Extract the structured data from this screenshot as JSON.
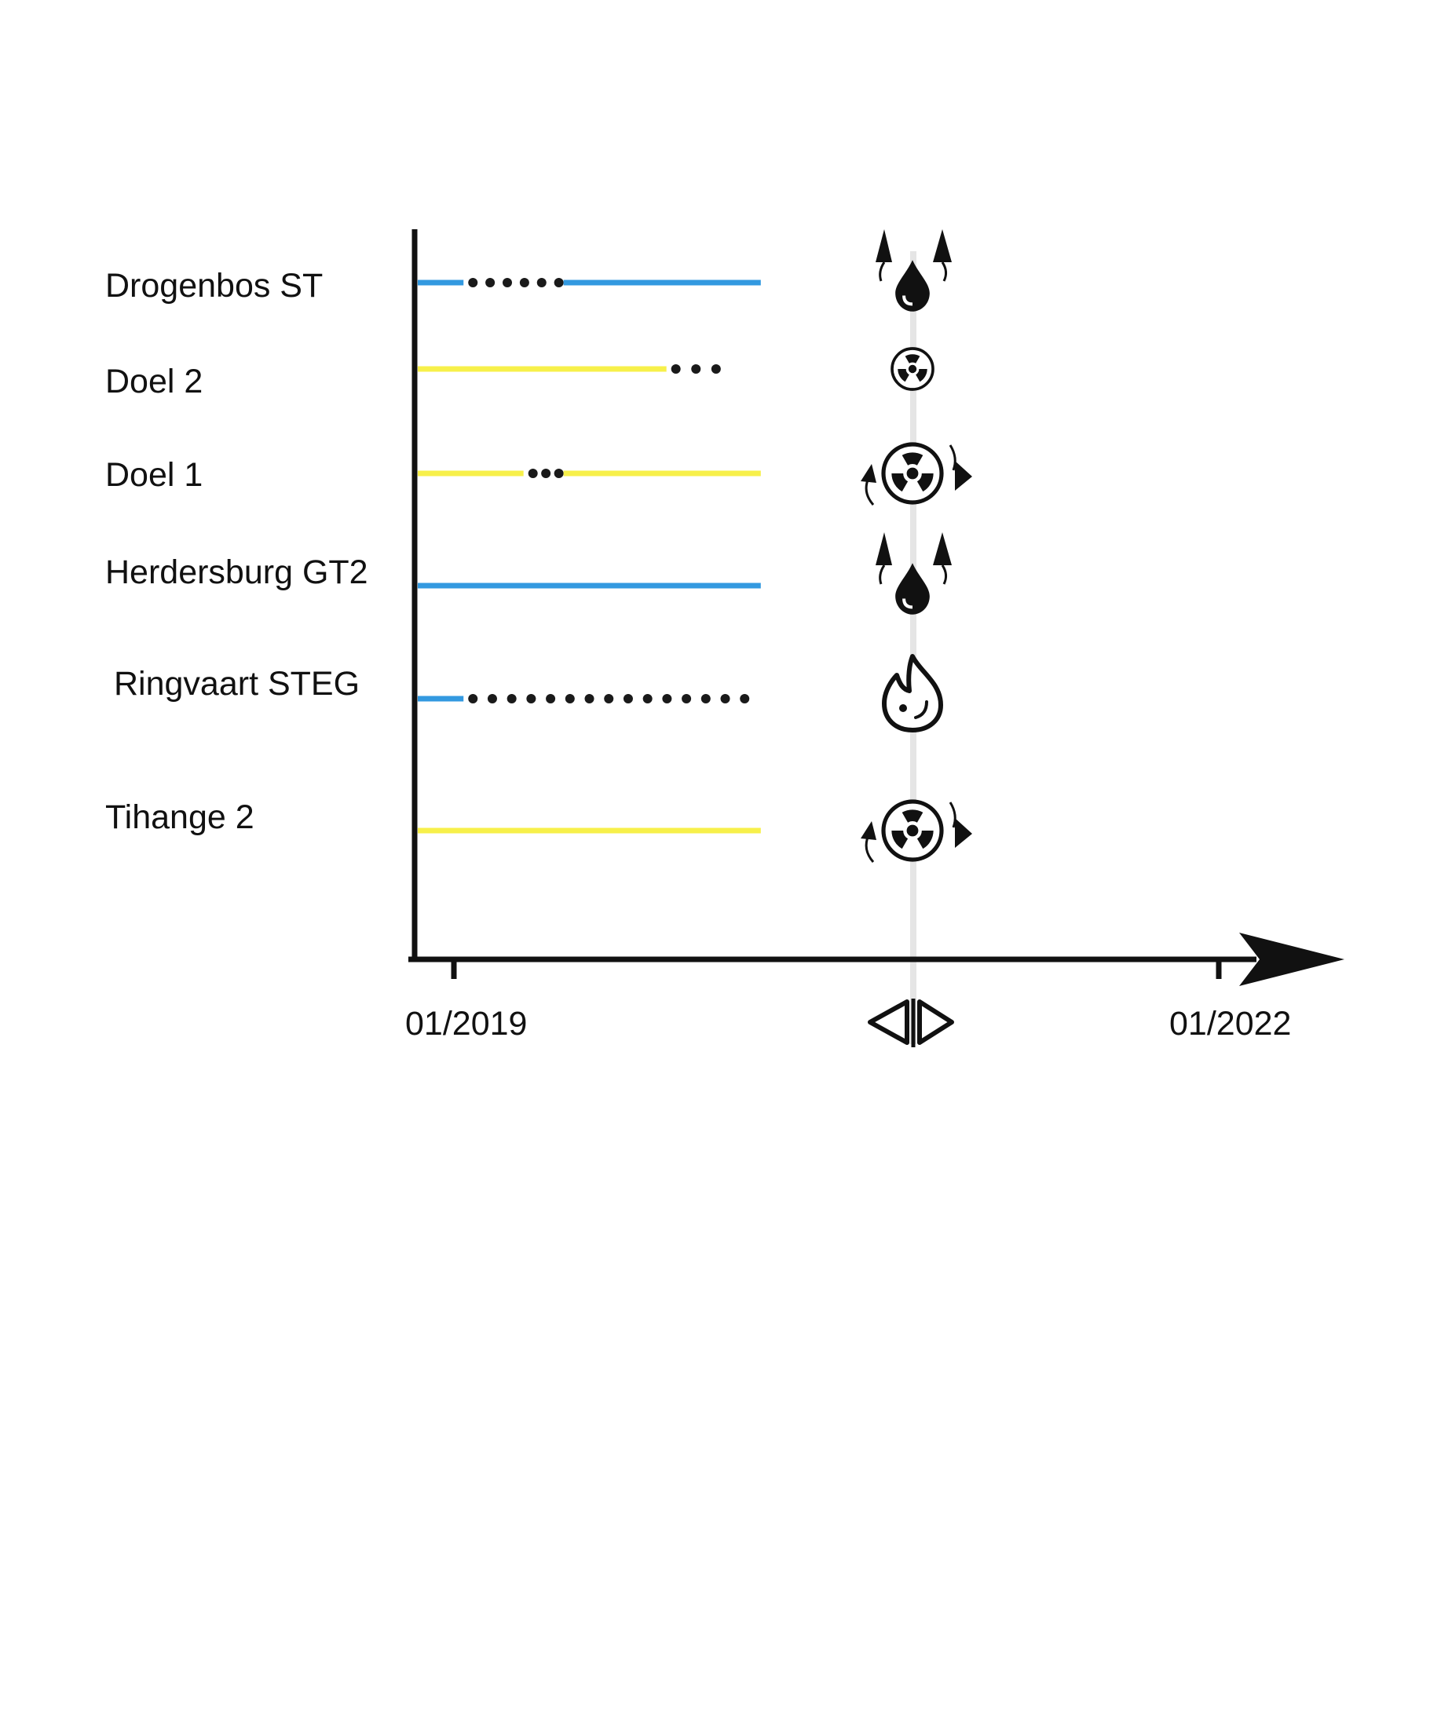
{
  "colors": {
    "electric": "#3399e0",
    "nuclear": "#f7f04a",
    "dots": "#1a1a1a",
    "axis": "#111111",
    "now_line": "#e5e5e5"
  },
  "chart_data": {
    "type": "timeline",
    "title": "",
    "xaxis": {
      "start_label": "01/2019",
      "end_label": "01/2022",
      "marker_label": "◁▷"
    },
    "rows": [
      {
        "label": "Drogenbos ST",
        "fuel": "gas",
        "color": "electric",
        "segments": [
          {
            "kind": "solid",
            "from": 0.0,
            "to": 0.08
          },
          {
            "kind": "dotted",
            "from": 0.08,
            "to": 0.255,
            "dots": 6
          },
          {
            "kind": "solid",
            "from": 0.255,
            "to": 0.6
          }
        ],
        "end_icon": "oil-drop-up-arrows-icon"
      },
      {
        "label": "Doel 2",
        "fuel": "nuclear",
        "color": "nuclear",
        "segments": [
          {
            "kind": "solid",
            "from": 0.0,
            "to": 0.435
          },
          {
            "kind": "dotted",
            "from": 0.435,
            "to": 0.53,
            "dots": 3
          }
        ],
        "end_icon": "radiation-icon"
      },
      {
        "label": "Doel 1",
        "fuel": "nuclear",
        "color": "nuclear",
        "segments": [
          {
            "kind": "solid",
            "from": 0.0,
            "to": 0.185
          },
          {
            "kind": "dotted",
            "from": 0.185,
            "to": 0.255,
            "dots": 3
          },
          {
            "kind": "solid",
            "from": 0.255,
            "to": 0.6
          }
        ],
        "end_icon": "radiation-cycle-icon"
      },
      {
        "label": "Herdersburg GT2",
        "fuel": "gas",
        "color": "electric",
        "segments": [
          {
            "kind": "solid",
            "from": 0.0,
            "to": 0.6
          }
        ],
        "end_icon": "oil-drop-up-arrows-icon"
      },
      {
        "label": "Ringvaart STEG",
        "fuel": "gas",
        "color": "electric",
        "segments": [
          {
            "kind": "solid",
            "from": 0.0,
            "to": 0.08
          },
          {
            "kind": "dotted",
            "from": 0.08,
            "to": 0.58,
            "dots": 15
          }
        ],
        "end_icon": "flame-icon"
      },
      {
        "label": "Tihange 2",
        "fuel": "nuclear",
        "color": "nuclear",
        "segments": [
          {
            "kind": "solid",
            "from": 0.0,
            "to": 0.6
          }
        ],
        "end_icon": "radiation-cycle-icon"
      }
    ]
  }
}
